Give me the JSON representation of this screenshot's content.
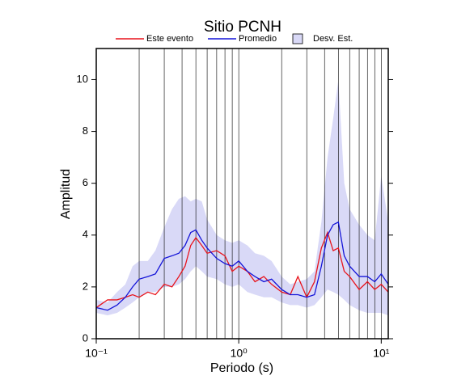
{
  "chart_data": {
    "type": "line",
    "title": "Sitio PCNH",
    "xlabel": "Periodo (s)",
    "ylabel": "Amplitud",
    "log_x": true,
    "grid_x": true,
    "xlim": [
      0.1,
      11.2
    ],
    "ylim": [
      0,
      11.2
    ],
    "xticks": [
      {
        "value": 0.1,
        "label": "10⁻¹"
      },
      {
        "value": 1,
        "label": "10⁰"
      },
      {
        "value": 10,
        "label": "10¹"
      }
    ],
    "yticks": [
      0,
      2,
      4,
      6,
      8,
      10
    ],
    "x": [
      0.1,
      0.12,
      0.14,
      0.16,
      0.18,
      0.2,
      0.23,
      0.26,
      0.3,
      0.34,
      0.38,
      0.42,
      0.46,
      0.5,
      0.55,
      0.6,
      0.7,
      0.8,
      0.9,
      1.0,
      1.15,
      1.3,
      1.5,
      1.7,
      2.0,
      2.3,
      2.6,
      3.0,
      3.4,
      3.8,
      4.2,
      4.6,
      5.0,
      5.5,
      6,
      7,
      8,
      9,
      10,
      11.2
    ],
    "band": {
      "name": "Desv. Est.",
      "color": "#d9d9f7",
      "upper": [
        1.5,
        1.4,
        1.8,
        2.1,
        2.8,
        3.0,
        3.0,
        3.4,
        4.3,
        5.0,
        5.4,
        5.5,
        5.3,
        5.4,
        5.3,
        4.6,
        4.0,
        3.8,
        3.7,
        3.8,
        3.6,
        3.3,
        3.2,
        3.0,
        2.4,
        2.1,
        2.2,
        2.3,
        2.6,
        4.5,
        7.0,
        8.5,
        10.0,
        6.0,
        5.0,
        4.4,
        4.0,
        3.8,
        6.3,
        4.5
      ],
      "lower": [
        1.0,
        0.9,
        1.0,
        1.2,
        1.4,
        1.6,
        1.8,
        1.8,
        2.0,
        2.0,
        2.1,
        2.3,
        2.6,
        2.8,
        2.6,
        2.4,
        2.3,
        2.1,
        2.0,
        2.1,
        1.8,
        1.7,
        1.6,
        1.6,
        1.4,
        1.3,
        1.3,
        1.2,
        1.3,
        1.6,
        1.9,
        1.8,
        1.7,
        1.5,
        1.3,
        1.1,
        1.0,
        1.0,
        1.0,
        0.9
      ]
    },
    "series": [
      {
        "name": "Este evento",
        "color": "#e8141c",
        "values": [
          1.2,
          1.5,
          1.5,
          1.6,
          1.7,
          1.6,
          1.8,
          1.7,
          2.1,
          2.0,
          2.4,
          2.8,
          3.6,
          3.9,
          3.6,
          3.3,
          3.4,
          3.2,
          2.6,
          2.8,
          2.6,
          2.2,
          2.4,
          2.1,
          1.8,
          1.7,
          2.4,
          1.6,
          2.2,
          3.5,
          4.1,
          3.4,
          3.5,
          2.6,
          2.4,
          1.9,
          2.2,
          1.9,
          2.1,
          1.8
        ]
      },
      {
        "name": "Promedio",
        "color": "#1414d8",
        "values": [
          1.2,
          1.1,
          1.3,
          1.6,
          2.0,
          2.3,
          2.4,
          2.5,
          3.1,
          3.2,
          3.3,
          3.6,
          4.1,
          4.2,
          3.8,
          3.5,
          3.1,
          2.9,
          2.8,
          3.0,
          2.6,
          2.4,
          2.2,
          2.3,
          1.9,
          1.7,
          1.7,
          1.6,
          1.7,
          2.8,
          4.0,
          4.4,
          4.5,
          3.2,
          2.8,
          2.4,
          2.4,
          2.2,
          2.5,
          2.1
        ]
      }
    ]
  }
}
